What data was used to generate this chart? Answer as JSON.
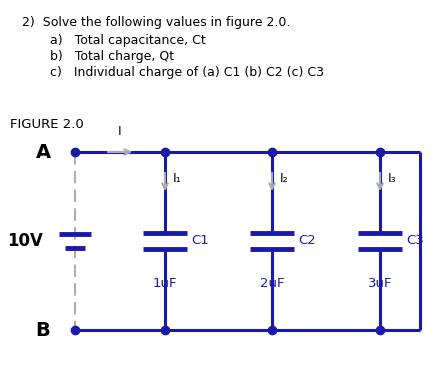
{
  "title_line": "2)  Solve the following values in figure 2.0.",
  "item_a": "a)   Total capacitance, Ct",
  "item_b": "b)   Total charge, Qt",
  "item_c": "c)   Individual charge of (a) C1 (b) C2 (c) C3",
  "figure_label": "FIGURE 2.0",
  "voltage_label": "10V",
  "node_A": "A",
  "node_B": "B",
  "current_label": "I",
  "current_labels": [
    "I₁",
    "I₂",
    "I₃"
  ],
  "cap_labels": [
    "C1",
    "C2",
    "C3"
  ],
  "cap_values": [
    "1uF",
    "2uF",
    "3uF"
  ],
  "wire_color": "#1a1aaa",
  "left_wire_color": "#b0b0b0",
  "cap_color": "#1a1aaa",
  "node_color": "#1a1aaa",
  "arrow_color": "#aaaaaa",
  "text_color": "#000000",
  "blue_text_color": "#1a1aaa",
  "bg_color": "#ffffff"
}
